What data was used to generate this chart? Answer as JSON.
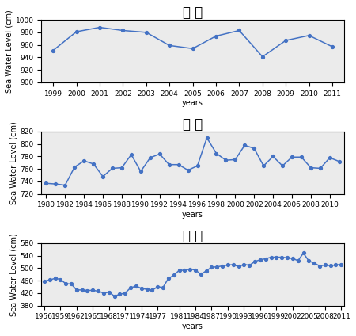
{
  "incheon": {
    "title": "인 천",
    "years": [
      1999,
      2000,
      2001,
      2002,
      2003,
      2004,
      2005,
      2006,
      2007,
      2008,
      2009,
      2010,
      2011
    ],
    "values": [
      951,
      981,
      988,
      983,
      980,
      959,
      954,
      974,
      983,
      941,
      967,
      975,
      957
    ],
    "ylim": [
      900,
      1000
    ],
    "yticks": [
      900,
      920,
      940,
      960,
      980,
      1000
    ],
    "xticks": [
      1999,
      2000,
      2001,
      2002,
      2003,
      2004,
      2005,
      2006,
      2007,
      2008,
      2009,
      2010,
      2011
    ],
    "xlabel": "years",
    "ylabel": "Sea Water Level (cm)"
  },
  "gunsan": {
    "title": "군 산",
    "years": [
      1980,
      1981,
      1982,
      1983,
      1984,
      1985,
      1986,
      1987,
      1988,
      1989,
      1990,
      1991,
      1992,
      1993,
      1994,
      1995,
      1996,
      1997,
      1998,
      1999,
      2000,
      2001,
      2002,
      2003,
      2004,
      2005,
      2006,
      2007,
      2008,
      2009,
      2010,
      2011
    ],
    "values": [
      737,
      736,
      734,
      763,
      773,
      768,
      748,
      761,
      762,
      783,
      756,
      778,
      784,
      767,
      767,
      758,
      765,
      810,
      785,
      774,
      775,
      798,
      793,
      765,
      780,
      765,
      779,
      779,
      762,
      761,
      778,
      772
    ],
    "ylim": [
      720,
      820
    ],
    "yticks": [
      720,
      740,
      760,
      780,
      800,
      820
    ],
    "xticks": [
      1980,
      1982,
      1984,
      1986,
      1988,
      1990,
      1992,
      1994,
      1996,
      1998,
      2000,
      2002,
      2004,
      2006,
      2008,
      2010
    ],
    "xlabel": "years",
    "ylabel": "Sea Water Level (cm)"
  },
  "mokpo": {
    "title": "목 포",
    "years": [
      1956,
      1957,
      1958,
      1959,
      1960,
      1961,
      1962,
      1963,
      1964,
      1965,
      1966,
      1967,
      1968,
      1969,
      1970,
      1971,
      1972,
      1973,
      1974,
      1975,
      1976,
      1977,
      1978,
      1979,
      1980,
      1981,
      1982,
      1983,
      1984,
      1985,
      1986,
      1987,
      1988,
      1989,
      1990,
      1991,
      1992,
      1993,
      1994,
      1995,
      1996,
      1997,
      1998,
      1999,
      2000,
      2001,
      2002,
      2003,
      2004,
      2005,
      2006,
      2007,
      2008,
      2009,
      2010,
      2011
    ],
    "values": [
      458,
      462,
      467,
      464,
      450,
      449,
      430,
      430,
      428,
      429,
      426,
      420,
      423,
      410,
      416,
      420,
      437,
      442,
      435,
      432,
      429,
      440,
      438,
      467,
      477,
      493,
      493,
      497,
      494,
      480,
      491,
      503,
      504,
      507,
      510,
      511,
      505,
      512,
      509,
      521,
      527,
      530,
      535,
      535,
      535,
      533,
      531,
      524,
      548,
      523,
      516,
      507,
      510,
      508,
      510,
      512
    ],
    "ylim": [
      380,
      580
    ],
    "yticks": [
      380,
      420,
      460,
      500,
      540,
      580
    ],
    "xticks": [
      1956,
      1959,
      1962,
      1965,
      1968,
      1971,
      1974,
      1977,
      1981,
      1984,
      1987,
      1990,
      1993,
      1996,
      1999,
      2002,
      2005,
      2008,
      2011
    ],
    "xlabel": "years",
    "ylabel": "Sea Water Level (cm)"
  },
  "line_color": "#4472C4",
  "marker": "o",
  "markersize": 2.8,
  "linewidth": 1.1,
  "bg_color": "#ebebeb",
  "title_fontsize": 12,
  "label_fontsize": 7,
  "tick_fontsize": 6.5
}
